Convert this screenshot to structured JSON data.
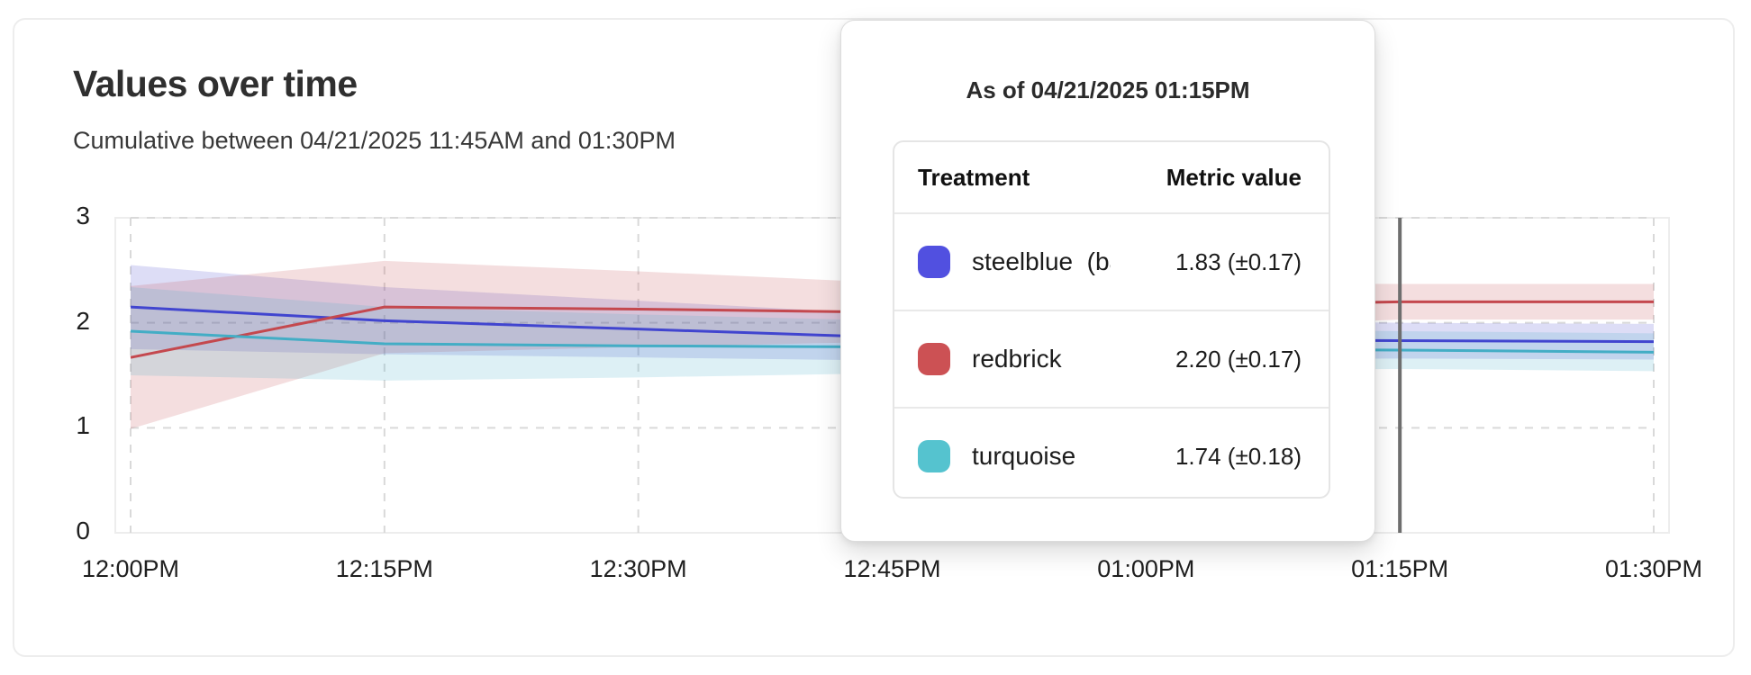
{
  "header": {
    "title": "Values over time",
    "subtitle": "Cumulative between 04/21/2025 11:45AM and 01:30PM"
  },
  "tooltip": {
    "title": "As of 04/21/2025 01:15PM",
    "columns": [
      "Treatment",
      "Metric value"
    ],
    "rows": [
      {
        "name": "steelblue  (baseli",
        "value": "1.83 (±0.17)",
        "color": "#5150e0"
      },
      {
        "name": "redbrick",
        "value": "2.20 (±0.17)",
        "color": "#cc5154"
      },
      {
        "name": "turquoise",
        "value": "1.74 (±0.18)",
        "color": "#55c3cf"
      }
    ]
  },
  "chart_data": {
    "type": "line",
    "title": "Values over time",
    "xlabel": "",
    "ylabel": "",
    "x_labels": [
      "12:00PM",
      "12:15PM",
      "12:30PM",
      "12:45PM",
      "01:00PM",
      "01:15PM",
      "01:30PM"
    ],
    "y_ticks": [
      0,
      1,
      2,
      3
    ],
    "ylim": [
      0,
      3
    ],
    "grid": "dashed",
    "legend_position": "tooltip",
    "cursor_x_label": "01:15PM",
    "cursor_color": "#6e6e6e",
    "grid_color": "#d9d9d9",
    "border_color": "#ededed",
    "series": [
      {
        "id": "steelblue",
        "name": "steelblue (baseline)",
        "line_color": "#4145cf",
        "band_opacity": 0.18,
        "values": [
          2.15,
          2.02,
          1.94,
          1.86,
          1.84,
          1.83,
          1.82
        ],
        "half_width": [
          0.4,
          0.32,
          0.27,
          0.22,
          0.19,
          0.17,
          0.17
        ]
      },
      {
        "id": "redbrick",
        "name": "redbrick",
        "line_color": "#c4484e",
        "band_opacity": 0.18,
        "values": [
          1.67,
          2.15,
          2.13,
          2.1,
          2.16,
          2.2,
          2.2
        ],
        "half_width": [
          0.68,
          0.44,
          0.36,
          0.28,
          0.22,
          0.17,
          0.17
        ]
      },
      {
        "id": "turquoise",
        "name": "turquoise",
        "line_color": "#43adc5",
        "band_opacity": 0.18,
        "values": [
          1.92,
          1.8,
          1.78,
          1.77,
          1.75,
          1.74,
          1.72
        ],
        "half_width": [
          0.42,
          0.35,
          0.3,
          0.25,
          0.2,
          0.18,
          0.18
        ]
      }
    ]
  }
}
